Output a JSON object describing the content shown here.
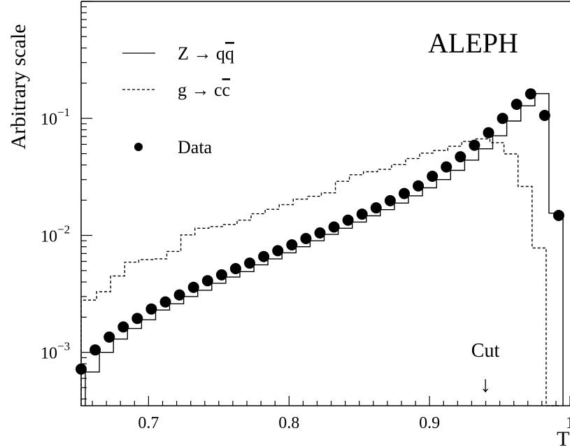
{
  "chart_data": {
    "type": "line",
    "title": "ALEPH",
    "ylabel": "Arbitrary scale",
    "xlabel": "T",
    "x_range": [
      0.652,
      1.0
    ],
    "ylim": [
      0.00035,
      1.0
    ],
    "y_scale": "log",
    "x_ticks": [
      {
        "value": 0.7,
        "label": "0.7"
      },
      {
        "value": 0.8,
        "label": "0.8"
      },
      {
        "value": 0.9,
        "label": "0.9"
      },
      {
        "value": 1.0,
        "label": "1"
      }
    ],
    "y_ticks": [
      {
        "value": 0.001,
        "base": "10",
        "exp": "−3"
      },
      {
        "value": 0.01,
        "base": "10",
        "exp": "−2"
      },
      {
        "value": 0.1,
        "base": "10",
        "exp": "−1"
      }
    ],
    "legend": {
      "placement": "top-left",
      "entries": [
        {
          "style": "solid",
          "text": "Z → q",
          "bar": "q"
        },
        {
          "style": "dashed",
          "text": "g → c",
          "bar": "c"
        },
        {
          "style": "marker",
          "text": "Data"
        }
      ]
    },
    "annotation": {
      "text": "Cut",
      "arrow": "↓",
      "x": 0.94
    },
    "series": [
      {
        "name": "Z → qq̄",
        "style": "solid-step",
        "bin_edges": [
          0.655,
          0.665,
          0.675,
          0.685,
          0.695,
          0.705,
          0.715,
          0.725,
          0.735,
          0.745,
          0.755,
          0.765,
          0.775,
          0.785,
          0.795,
          0.805,
          0.815,
          0.825,
          0.835,
          0.845,
          0.855,
          0.865,
          0.875,
          0.885,
          0.895,
          0.905,
          0.915,
          0.925,
          0.935,
          0.945,
          0.955,
          0.965,
          0.975,
          0.985,
          0.995
        ],
        "values": [
          0.00068,
          0.001,
          0.0013,
          0.0016,
          0.0019,
          0.0023,
          0.0026,
          0.003,
          0.0034,
          0.0039,
          0.0044,
          0.0049,
          0.0056,
          0.0063,
          0.0071,
          0.008,
          0.009,
          0.0102,
          0.0115,
          0.013,
          0.0147,
          0.0166,
          0.0189,
          0.0218,
          0.0255,
          0.03,
          0.036,
          0.044,
          0.055,
          0.071,
          0.095,
          0.128,
          0.163,
          0.0155
        ]
      },
      {
        "name": "g → cc̄",
        "style": "dashed-step",
        "bin_edges": [
          0.652,
          0.663,
          0.673,
          0.683,
          0.693,
          0.703,
          0.713,
          0.723,
          0.733,
          0.743,
          0.753,
          0.763,
          0.773,
          0.783,
          0.793,
          0.803,
          0.813,
          0.823,
          0.833,
          0.843,
          0.853,
          0.863,
          0.873,
          0.883,
          0.893,
          0.903,
          0.913,
          0.923,
          0.933,
          0.943,
          0.953,
          0.963,
          0.973,
          0.983,
          0.992
        ],
        "values": [
          0.0028,
          0.0033,
          0.0045,
          0.0059,
          0.0062,
          0.0063,
          0.0073,
          0.0101,
          0.0115,
          0.0119,
          0.0124,
          0.0135,
          0.0153,
          0.0167,
          0.0183,
          0.0204,
          0.0216,
          0.0231,
          0.029,
          0.033,
          0.035,
          0.0367,
          0.0403,
          0.0454,
          0.0505,
          0.0532,
          0.0578,
          0.0635,
          0.0668,
          0.0621,
          0.0497,
          0.0262,
          0.0078,
          0.00035
        ]
      },
      {
        "name": "Data",
        "style": "marker",
        "x": [
          0.652,
          0.662,
          0.672,
          0.682,
          0.692,
          0.702,
          0.712,
          0.722,
          0.732,
          0.742,
          0.752,
          0.762,
          0.772,
          0.782,
          0.792,
          0.802,
          0.812,
          0.822,
          0.832,
          0.842,
          0.852,
          0.862,
          0.872,
          0.882,
          0.892,
          0.902,
          0.912,
          0.922,
          0.932,
          0.942,
          0.952,
          0.962,
          0.972,
          0.982,
          0.992
        ],
        "y": [
          0.00072,
          0.00105,
          0.00135,
          0.00165,
          0.00195,
          0.00235,
          0.0027,
          0.0031,
          0.0036,
          0.0041,
          0.0046,
          0.0052,
          0.0058,
          0.0066,
          0.0074,
          0.0083,
          0.0094,
          0.0105,
          0.0118,
          0.0135,
          0.0152,
          0.0172,
          0.0198,
          0.0228,
          0.0265,
          0.032,
          0.0385,
          0.047,
          0.059,
          0.0755,
          0.1,
          0.132,
          0.162,
          0.106,
          0.0148
        ]
      }
    ]
  }
}
